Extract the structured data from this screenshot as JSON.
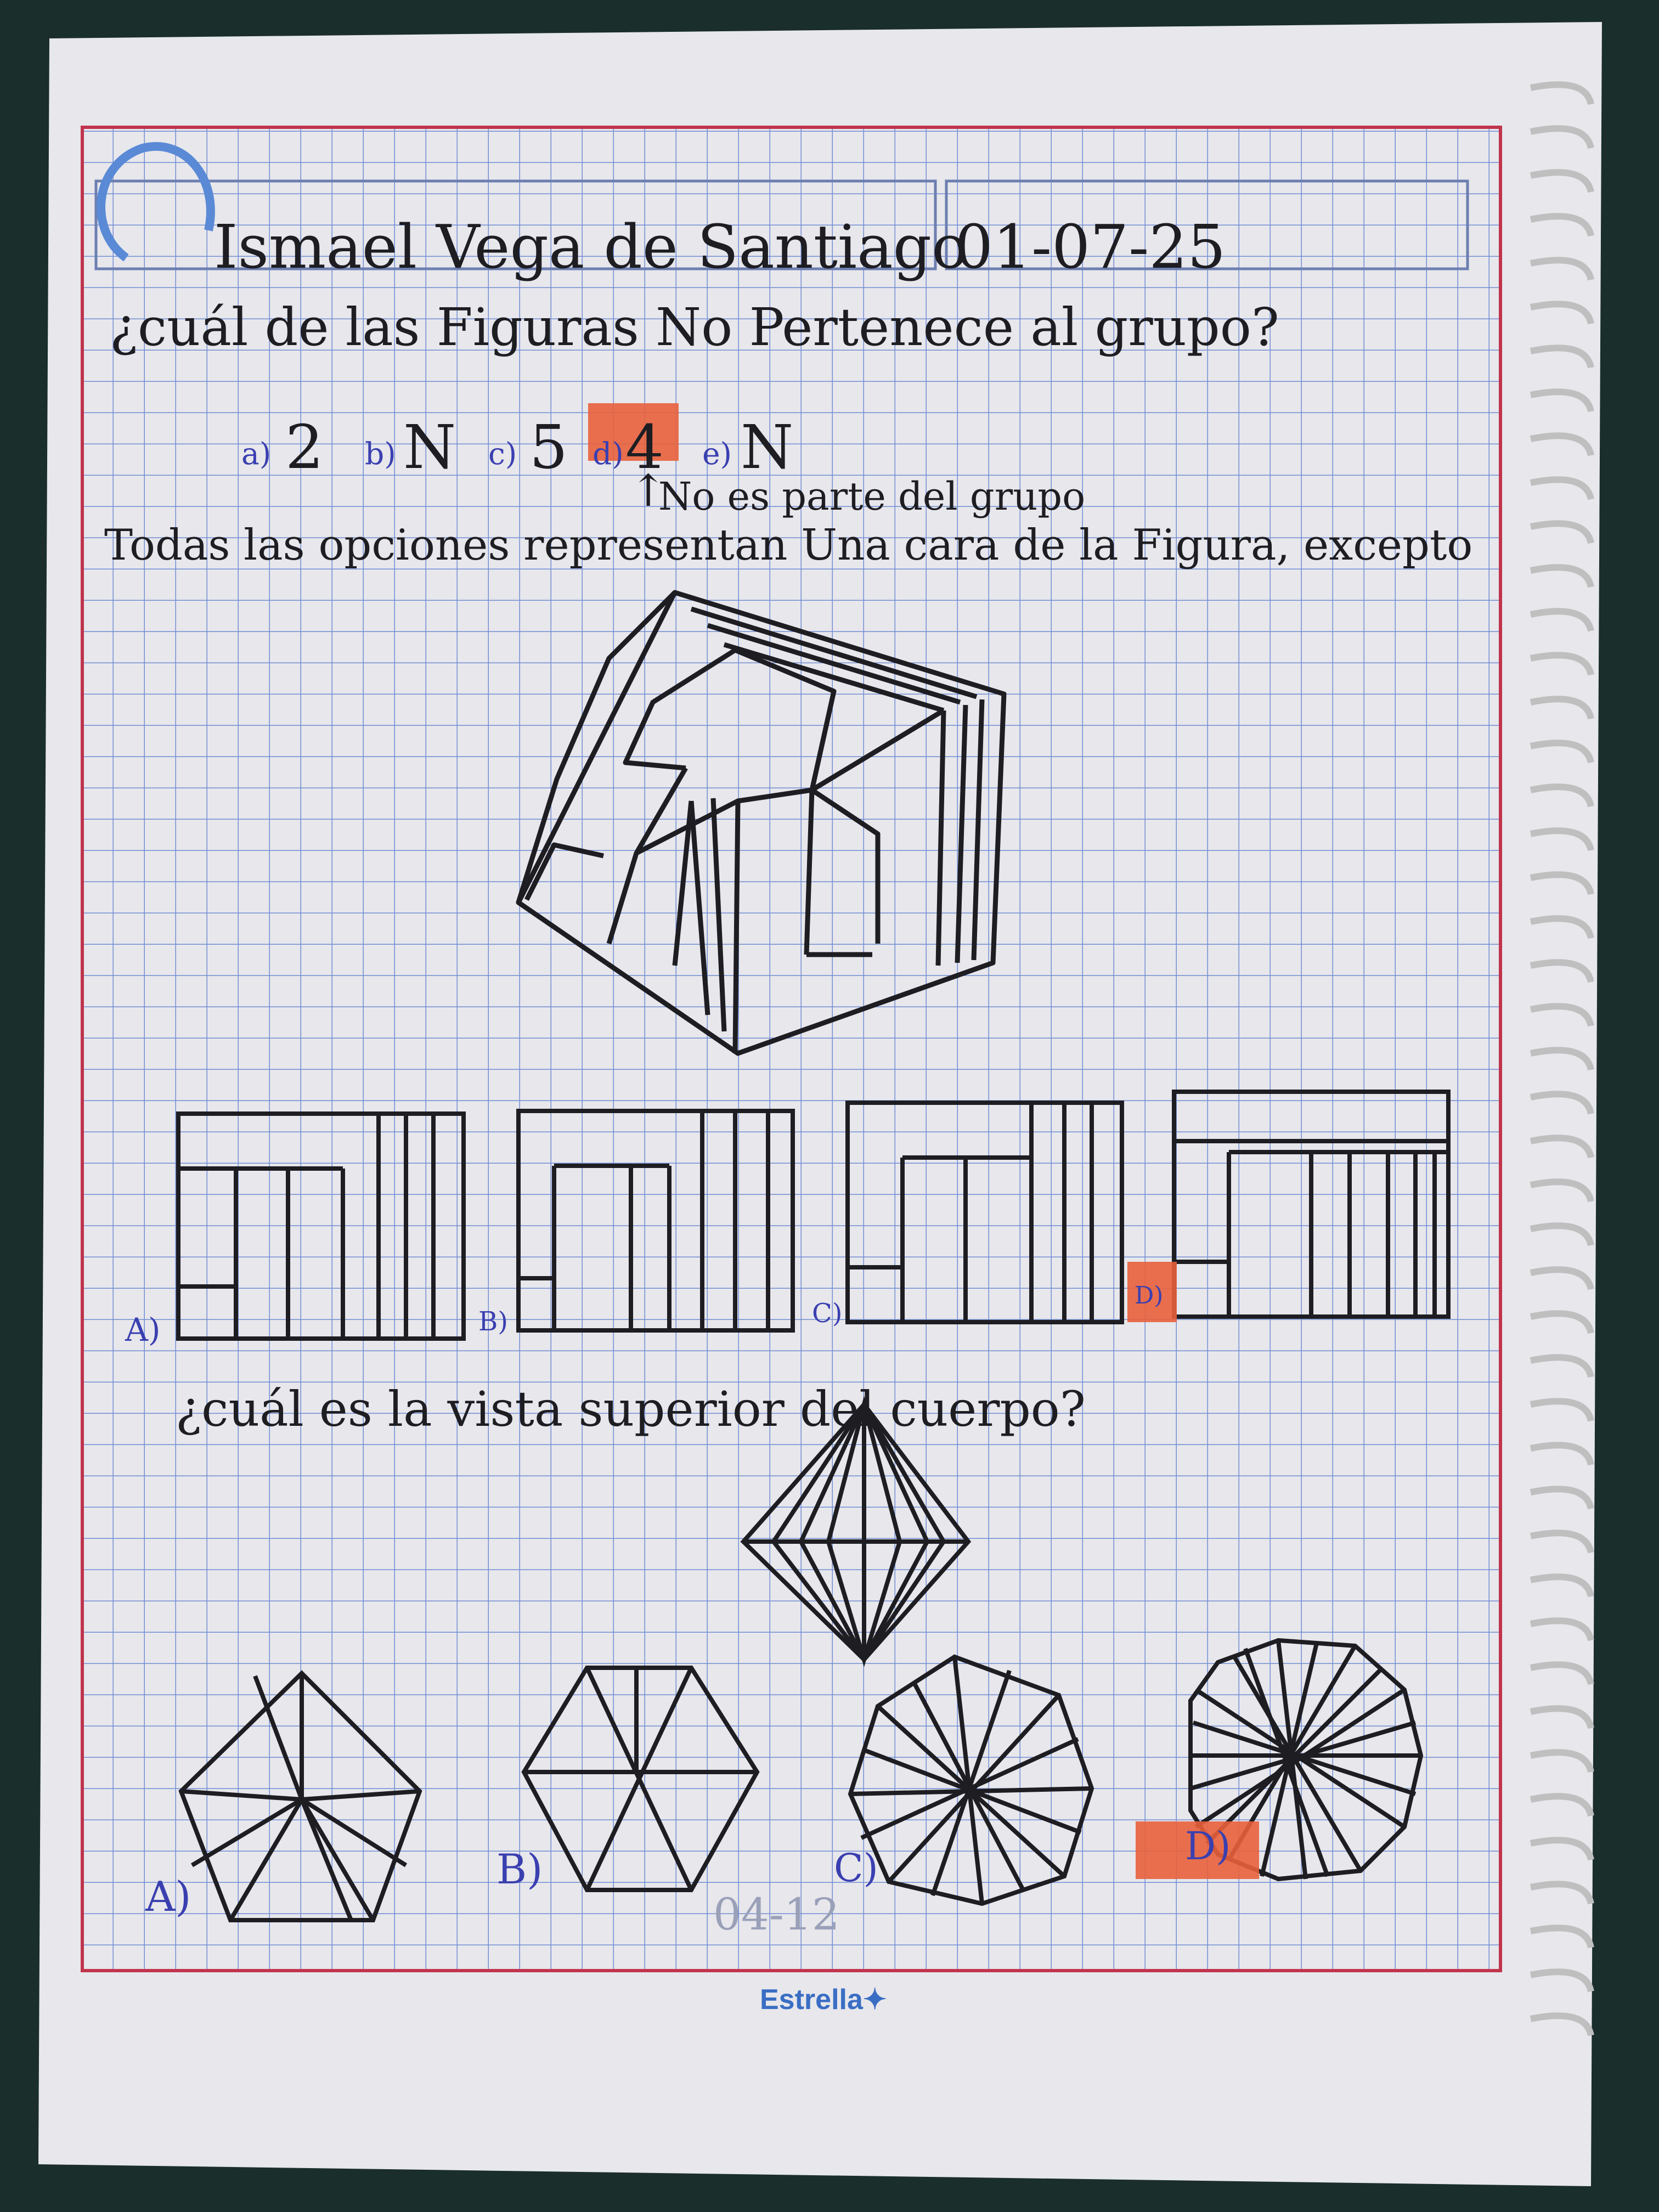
{
  "notebook": {
    "header": {
      "name": "Ismael Vega de Santiago",
      "date": "01-07-25"
    },
    "question1": {
      "prompt": "¿cuál de las Figuras No Pertenece al grupo?",
      "options": [
        {
          "label": "a)",
          "symbol": "2"
        },
        {
          "label": "b)",
          "symbol": "N"
        },
        {
          "label": "c)",
          "symbol": "5"
        },
        {
          "label": "d)",
          "symbol": "4"
        },
        {
          "label": "e)",
          "symbol": "N"
        }
      ],
      "selected": "d",
      "note": "No es parte del grupo"
    },
    "question2": {
      "prompt": "Todas las opciones representan Una cara de la Figura, excepto",
      "option_labels": [
        "A)",
        "B)",
        "C)",
        "D)"
      ],
      "selected": "D"
    },
    "question3": {
      "prompt": "¿cuál es la vista superior del cuerpo?",
      "option_labels": [
        "A)",
        "B)",
        "C)",
        "D)"
      ],
      "selected": "D"
    },
    "page_number": "04-12",
    "brand": "Estrella"
  },
  "colors": {
    "paper": "#e9e9ee",
    "grid": "#4a6fc9",
    "margin": "#c0344c",
    "ink": "#1d1d22",
    "highlight": "#e8603c",
    "pen_blue": "#3a3fb0"
  }
}
